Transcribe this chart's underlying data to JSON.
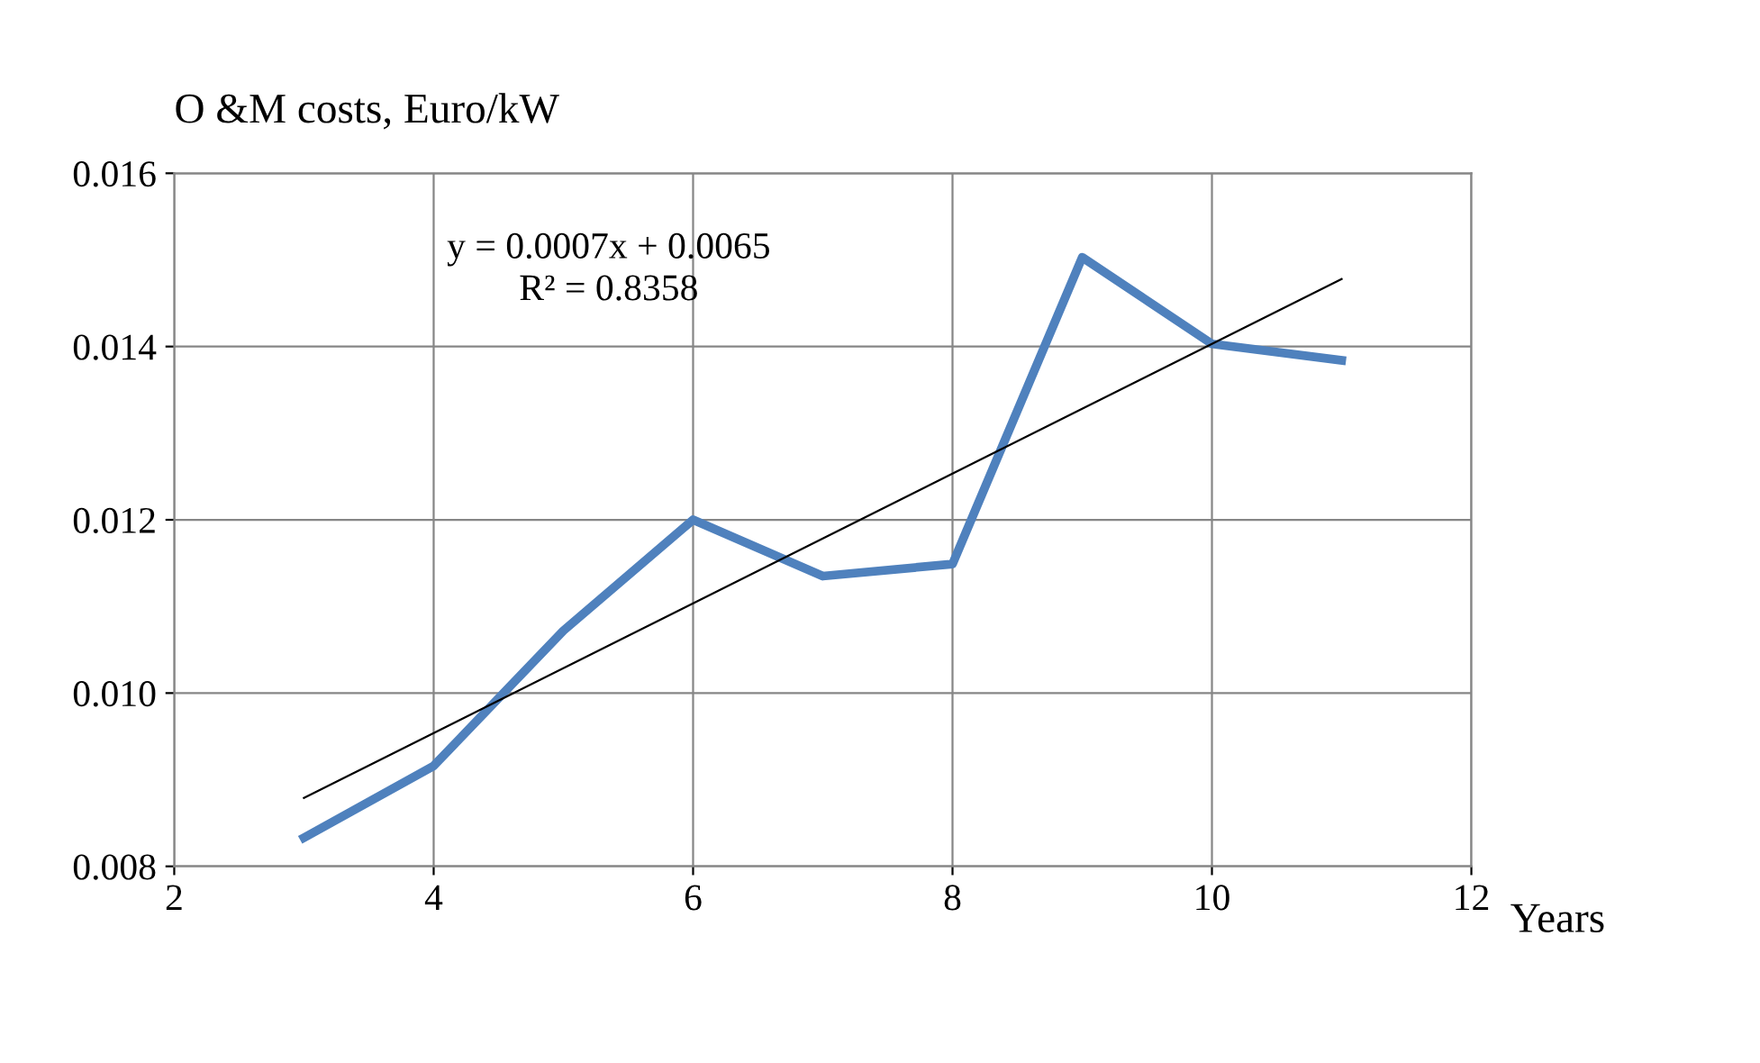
{
  "chart_data": {
    "type": "line",
    "ylabel": "O &M costs, Euro/kW",
    "xlabel": "Years",
    "annotations": [
      "y = 0.0007x + 0.0065\nR² = 0.8358"
    ],
    "x": [
      3,
      4,
      5,
      6,
      7,
      8,
      9,
      10,
      11
    ],
    "series": [
      {
        "color": "#4f81bd",
        "values": [
          0.00833,
          0.00916,
          0.01072,
          0.012,
          0.01135,
          0.01149,
          0.01503,
          0.01403,
          0.01384
        ]
      },
      {
        "type": "line",
        "color": "#000000",
        "x": [
          3,
          11
        ],
        "values": [
          0.00879,
          0.01478
        ]
      }
    ],
    "xlim": [
      2,
      12
    ],
    "xticks": [
      2,
      4,
      6,
      8,
      10,
      12
    ],
    "ylim": [
      0.008,
      0.016
    ],
    "yticks": [
      {
        "value": 0.008,
        "label": "0.008"
      },
      {
        "value": 0.01,
        "label": "0.010"
      },
      {
        "value": 0.012,
        "label": "0.012"
      },
      {
        "value": 0.014,
        "label": "0.014"
      },
      {
        "value": 0.016,
        "label": "0.016"
      }
    ],
    "grid": true,
    "line_style": "solid",
    "marker": "none"
  }
}
